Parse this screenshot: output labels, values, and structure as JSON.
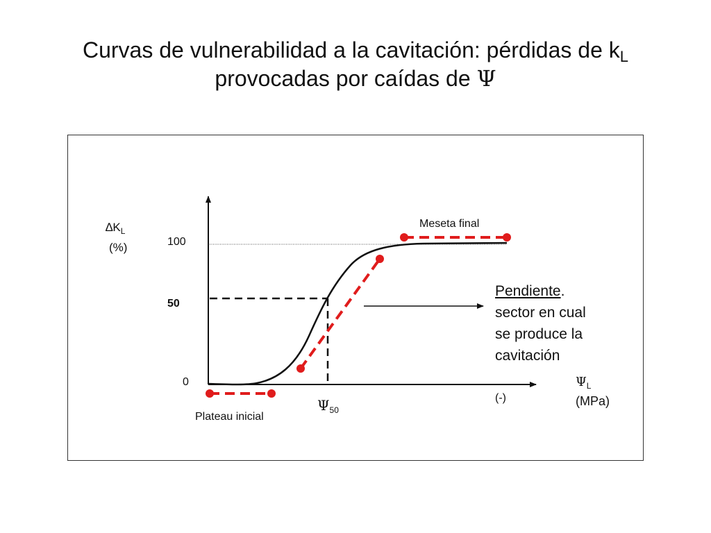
{
  "title": {
    "line1": "Curvas de vulnerabilidad a la cavitación: pérdidas de k",
    "line1_sub": "L",
    "line2": "provocadas por caídas de ",
    "line2_symbol": "Ψ"
  },
  "y_axis": {
    "symbol": "∆K",
    "symbol_sub": "L",
    "unit": "(%)",
    "ticks": {
      "t100": "100",
      "t50": "50",
      "t0": "0"
    }
  },
  "x_axis": {
    "symbol": "Ψ",
    "symbol_sub": "L",
    "unit": "(MPa)",
    "direction": "(-)",
    "psi50_symbol": "Ψ",
    "psi50_sub": "50"
  },
  "annotations": {
    "meseta": "Meseta final",
    "plateau": "Plateau inicial",
    "pendiente_word": "Pendiente",
    "pendiente_dot": ".",
    "pendiente_lines": [
      "sector en cual",
      "se produce la",
      "cavitación"
    ]
  },
  "colors": {
    "curve": "#111111",
    "highlight": "#e01c1c",
    "axis": "#111111"
  }
}
